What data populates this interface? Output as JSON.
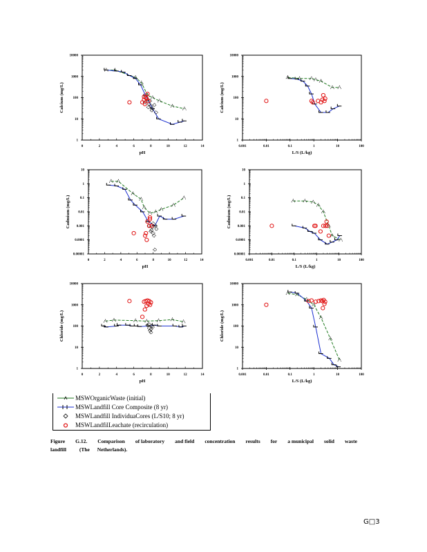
{
  "page": {
    "page_number": "G□3"
  },
  "legend": {
    "items": [
      {
        "label": "MSWOrganicWaste (initial)",
        "color": "#1f7a1f",
        "marker": "triangle",
        "line": "dashed"
      },
      {
        "label": "MSWLandfill Core Composite (8 yr)",
        "color": "#1a2fd0",
        "marker": "step",
        "line": "solid"
      },
      {
        "label": "MSWLandfill IndividuaCores (L/S10; 8 yr)",
        "color": "#000000",
        "marker": "diamond",
        "line": "none"
      },
      {
        "label": "MSWLandfilLeachate (recirculation)",
        "color": "#e01010",
        "marker": "circle",
        "line": "none"
      }
    ]
  },
  "caption": {
    "words_line1": [
      "Figure",
      "G.12.",
      "Comparison",
      "of laboratory",
      "and field",
      "concentration",
      "results",
      "for",
      "a municipal",
      "solid",
      "waste"
    ],
    "words_line2": [
      "landfill",
      "(The",
      "Netherlands)."
    ]
  },
  "chart_data": [
    {
      "id": "calcium-ph",
      "type": "line",
      "xlabel": "pH",
      "ylabel": "Calcium     (mg/L)",
      "xscale": "linear",
      "yscale": "log",
      "xlim": [
        0,
        14
      ],
      "ylim": [
        1,
        10000
      ],
      "xticks": [
        "0",
        "2",
        "4",
        "6",
        "8",
        "10",
        "12",
        "14"
      ],
      "yticks": [
        "1",
        "10",
        "100",
        "1000",
        "10000"
      ],
      "series": [
        {
          "name": "MSWOrganicWaste (initial)",
          "x": [
            2.8,
            3.8,
            6.2,
            6.9,
            7.6,
            8.2,
            9.0,
            10.5,
            11.9
          ],
          "y": [
            2000,
            2000,
            900,
            500,
            130,
            100,
            70,
            40,
            30
          ]
        },
        {
          "name": "MSWLandfill Core Composite (8 yr)",
          "x": [
            2.8,
            4.0,
            4.8,
            5.5,
            6.2,
            6.8,
            7.4,
            8.2,
            8.9,
            10.5,
            11.4,
            11.9
          ],
          "y": [
            2000,
            1800,
            1600,
            1100,
            800,
            400,
            120,
            30,
            10,
            5.5,
            7,
            8
          ]
        },
        {
          "name": "MSWLandfill IndividuaCores (L/S10; 8 yr)",
          "x": [
            7.3,
            7.6,
            7.8,
            8.0,
            8.2,
            7.9,
            8.4,
            8.6,
            7.7,
            8.1
          ],
          "y": [
            60,
            80,
            50,
            40,
            30,
            70,
            45,
            20,
            35,
            25
          ]
        },
        {
          "name": "MSWLandfilLeachate (recirculation)",
          "x": [
            5.5,
            7.0,
            7.2,
            7.4,
            7.6,
            7.3,
            7.5,
            7.7,
            7.2
          ],
          "y": [
            60,
            60,
            80,
            100,
            150,
            50,
            90,
            70,
            110
          ]
        }
      ]
    },
    {
      "id": "calcium-ls",
      "type": "line",
      "xlabel": "L/S     (L/kg)",
      "ylabel": "Calcium     (mg/L)",
      "xscale": "log",
      "yscale": "log",
      "xlim": [
        0.001,
        100
      ],
      "ylim": [
        1,
        10000
      ],
      "xticks": [
        "0.001",
        "0.01",
        "0.1",
        "1",
        "10",
        "100"
      ],
      "yticks": [
        "1",
        "10",
        "100",
        "1000",
        "10000"
      ],
      "series": [
        {
          "name": "MSWOrganicWaste (initial)",
          "x": [
            0.08,
            0.25,
            0.8,
            1.2,
            2.0,
            6.0,
            12.0
          ],
          "y": [
            900,
            800,
            800,
            700,
            600,
            300,
            300
          ]
        },
        {
          "name": "MSWLandfill Core Composite (8 yr)",
          "x": [
            0.1,
            0.2,
            0.35,
            0.55,
            0.8,
            1.1,
            2.0,
            4.0,
            6.5,
            12.0
          ],
          "y": [
            800,
            750,
            600,
            350,
            150,
            50,
            20,
            20,
            30,
            40
          ]
        },
        {
          "name": "MSWLandfill IndividuaCores (L/S10; 8 yr)",
          "x": [],
          "y": []
        },
        {
          "name": "MSWLandfilLeachate (recirculation)",
          "x": [
            0.01,
            0.8,
            0.9,
            1.5,
            2.0,
            2.3,
            2.5,
            3.0,
            2.8
          ],
          "y": [
            70,
            70,
            60,
            70,
            60,
            80,
            130,
            90,
            70
          ]
        }
      ]
    },
    {
      "id": "cadmium-ph",
      "type": "line",
      "xlabel": "pH",
      "ylabel": "Cadmium     (mg/L)",
      "xscale": "linear",
      "yscale": "log",
      "xlim": [
        0,
        14
      ],
      "ylim": [
        1e-05,
        10
      ],
      "xticks": [
        "0",
        "2",
        "4",
        "6",
        "8",
        "10",
        "12",
        "14"
      ],
      "yticks": [
        "0.00001",
        "0.0001",
        "0.001",
        "0.01",
        "0.1",
        "1",
        "10"
      ],
      "series": [
        {
          "name": "MSWOrganicWaste (initial)",
          "x": [
            2.8,
            3.7,
            5.5,
            6.5,
            6.9,
            7.6,
            8.3,
            9.0,
            10.5,
            11.8
          ],
          "y": [
            1.5,
            1.5,
            0.2,
            0.08,
            0.02,
            0.008,
            0.01,
            0.015,
            0.03,
            0.1
          ]
        },
        {
          "name": "MSWLandfill Core Composite (8 yr)",
          "x": [
            2.5,
            3.5,
            4.5,
            5.2,
            5.8,
            6.7,
            7.4,
            8.2,
            8.8,
            9.5,
            10.6,
            11.8
          ],
          "y": [
            0.8,
            0.7,
            0.4,
            0.07,
            0.03,
            0.01,
            0.002,
            0.001,
            0.005,
            0.003,
            0.003,
            0.005
          ]
        },
        {
          "name": "MSWLandfill IndividuaCores (L/S10; 8 yr)",
          "x": [
            7.5,
            7.8,
            8.0,
            8.3,
            7.9,
            8.1,
            8.4,
            8.2,
            7.7,
            8.0
          ],
          "y": [
            0.001,
            0.0005,
            0.0003,
            0.001,
            0.0008,
            0.0002,
            0.0006,
            2e-05,
            0.0004,
            0.0015
          ]
        },
        {
          "name": "MSWLandfilLeachate (recirculation)",
          "x": [
            5.6,
            7.0,
            7.2,
            7.5,
            7.6,
            7.3,
            7.8,
            7.1,
            7.6
          ],
          "y": [
            0.0003,
            0.0002,
            0.0001,
            0.001,
            0.003,
            0.002,
            0.001,
            0.0003,
            0.004
          ]
        }
      ]
    },
    {
      "id": "cadmium-ls",
      "type": "line",
      "xlabel": "L/S     (L/kg)",
      "ylabel": "Cadmium     (mg/L)",
      "xscale": "log",
      "yscale": "log",
      "xlim": [
        0.001,
        100
      ],
      "ylim": [
        1e-05,
        10
      ],
      "xticks": [
        "0.001",
        "0.01",
        "0.1",
        "1",
        "10",
        "100"
      ],
      "yticks": [
        "0.00001",
        "0.0001",
        "0.001",
        "0.01",
        "0.1",
        "1",
        "10"
      ],
      "series": [
        {
          "name": "MSWOrganicWaste (initial)",
          "x": [
            0.09,
            0.3,
            0.7,
            1.2,
            2.0,
            3.5,
            5.0,
            12.0
          ],
          "y": [
            0.06,
            0.06,
            0.05,
            0.03,
            0.01,
            0.001,
            0.0002,
            0.0001
          ]
        },
        {
          "name": "MSWLandfill Core Composite (8 yr)",
          "x": [
            0.1,
            0.3,
            0.5,
            0.8,
            1.5,
            3.0,
            5.0,
            8.0,
            11.0
          ],
          "y": [
            0.001,
            0.0007,
            0.0004,
            0.0003,
            0.0001,
            5e-05,
            7e-05,
            0.0001,
            0.0002
          ]
        },
        {
          "name": "MSWLandfill IndividuaCores (L/S10; 8 yr)",
          "x": [],
          "y": []
        },
        {
          "name": "MSWLandfilLeachate (recirculation)",
          "x": [
            0.01,
            0.8,
            0.9,
            1.5,
            2.0,
            2.5,
            3.0,
            2.8,
            3.5
          ],
          "y": [
            0.001,
            0.001,
            0.001,
            0.0004,
            0.001,
            0.001,
            0.001,
            0.002,
            0.0002
          ]
        }
      ]
    },
    {
      "id": "chloride-ph",
      "type": "line",
      "xlabel": "pH",
      "ylabel": "Chloride     (mg/L)",
      "xscale": "linear",
      "yscale": "log",
      "xlim": [
        0,
        14
      ],
      "ylim": [
        1,
        10000
      ],
      "xticks": [
        "0",
        "2",
        "4",
        "6",
        "8",
        "10",
        "12",
        "14"
      ],
      "yticks": [
        "1",
        "10",
        "100",
        "1000",
        "10000"
      ],
      "series": [
        {
          "name": "MSWOrganicWaste (initial)",
          "x": [
            2.7,
            3.7,
            6.2,
            7.5,
            8.9,
            10.5,
            11.8
          ],
          "y": [
            170,
            190,
            180,
            170,
            180,
            200,
            160
          ]
        },
        {
          "name": "MSWLandfill Core Composite (8 yr)",
          "x": [
            2.5,
            2.8,
            4.0,
            4.3,
            5.3,
            5.8,
            6.3,
            6.7,
            7.8,
            8.4,
            9.0,
            10.8,
            11.5,
            11.9
          ],
          "y": [
            100,
            90,
            100,
            110,
            110,
            100,
            100,
            95,
            100,
            110,
            100,
            100,
            90,
            100
          ]
        },
        {
          "name": "MSWLandfill IndividuaCores (L/S10; 8 yr)",
          "x": [
            7.6,
            7.8,
            8.0,
            8.1,
            7.9,
            8.2,
            7.8,
            8.0
          ],
          "y": [
            110,
            80,
            70,
            100,
            60,
            90,
            120,
            50
          ]
        },
        {
          "name": "MSWLandfilLeachate (recirculation)",
          "x": [
            5.5,
            7.0,
            7.2,
            7.4,
            7.6,
            7.8,
            8.0,
            7.5,
            7.7,
            7.9,
            7.3
          ],
          "y": [
            1500,
            270,
            1400,
            1500,
            1600,
            1500,
            1300,
            900,
            1100,
            1000,
            600
          ]
        }
      ]
    },
    {
      "id": "chloride-ls",
      "type": "line",
      "xlabel": "L/S     (L/kg)",
      "ylabel": "Chloride     (mg/L)",
      "xscale": "log",
      "yscale": "log",
      "xlim": [
        0.001,
        100
      ],
      "ylim": [
        1,
        10000
      ],
      "xticks": [
        "0.001",
        "0.01",
        "0.1",
        "1",
        "10",
        "100"
      ],
      "yticks": [
        "1",
        "10",
        "100",
        "1000",
        "10000"
      ],
      "series": [
        {
          "name": "MSWOrganicWaste (initial)",
          "x": [
            0.08,
            0.2,
            0.5,
            1.0,
            2.0,
            5.0,
            12.0
          ],
          "y": [
            3500,
            3000,
            1800,
            1000,
            250,
            25,
            2.5
          ]
        },
        {
          "name": "MSWLandfill Core Composite (8 yr)",
          "x": [
            0.1,
            0.2,
            0.5,
            0.8,
            1.2,
            2.0,
            4.5,
            7.0,
            11.0
          ],
          "y": [
            4000,
            3500,
            1500,
            700,
            90,
            5,
            3,
            1.5,
            1.2
          ]
        },
        {
          "name": "MSWLandfill IndividuaCores (L/S10; 8 yr)",
          "x": [],
          "y": []
        },
        {
          "name": "MSWLandfilLeachate (recirculation)",
          "x": [
            0.01,
            0.6,
            0.8,
            1.2,
            1.6,
            2.0,
            2.3,
            2.6,
            3.0,
            2.4,
            2.8
          ],
          "y": [
            1000,
            1500,
            1600,
            1400,
            1500,
            1600,
            1500,
            1700,
            1400,
            700,
            1100
          ]
        }
      ]
    }
  ]
}
